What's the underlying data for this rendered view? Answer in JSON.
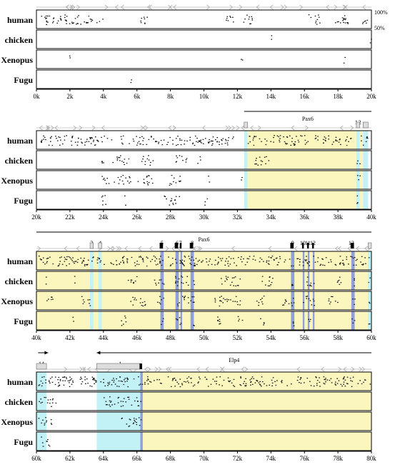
{
  "species": [
    "human",
    "chicken",
    "Xenopus",
    "Fugu"
  ],
  "scale_labels": {
    "top": "100%",
    "bottom": "50%"
  },
  "colors": {
    "exon_shading": "#8f9fd8",
    "utr_shading": "#c2f1f6",
    "intron_shading": "#fbf6be",
    "exon_box": "#000000",
    "utr_box": "#dddddd",
    "repeat_arrow": "#b0b0b0"
  },
  "panels": [
    {
      "start_kb": 0,
      "end_kb": 20,
      "ticks": [
        "0k",
        "2k",
        "4k",
        "6k",
        "8k",
        "10k",
        "12k",
        "14k",
        "16k",
        "18k",
        "20k"
      ],
      "genes": [],
      "exon_labels": [],
      "regions": [],
      "tracks": [
        {
          "species": "human",
          "segments": [
            [
              0.2,
              4.0
            ],
            [
              6.0,
              6.6
            ],
            [
              11.2,
              11.8
            ],
            [
              12.2,
              12.9
            ],
            [
              16.2,
              16.9
            ],
            [
              17.6,
              18.8
            ],
            [
              19.4,
              19.8
            ]
          ]
        },
        {
          "species": "chicken",
          "segments": [
            [
              14.0,
              14.1
            ],
            [
              19.9,
              20.0
            ]
          ]
        },
        {
          "species": "Xenopus",
          "segments": [
            [
              1.9,
              2.0
            ],
            [
              12.2,
              12.3
            ],
            [
              18.3,
              18.4
            ]
          ]
        },
        {
          "species": "Fugu",
          "segments": [
            [
              5.6,
              5.7
            ]
          ]
        }
      ]
    },
    {
      "start_kb": 20,
      "end_kb": 40,
      "ticks": [
        "20k",
        "22k",
        "24k",
        "26k",
        "28k",
        "30k",
        "32k",
        "34k",
        "36k",
        "38k",
        "40k"
      ],
      "genes": [
        {
          "name": "Pax6",
          "start": 32.4,
          "end": 40.0,
          "direction": "none"
        }
      ],
      "exon_labels": [
        {
          "text": "1",
          "pos": 39.1
        },
        {
          "text": "2",
          "pos": 39.3
        }
      ],
      "regions": [
        {
          "type": "utr",
          "start": 32.4,
          "end": 32.6
        },
        {
          "type": "intron",
          "start": 32.6,
          "end": 39.1
        },
        {
          "type": "utr",
          "start": 39.1,
          "end": 39.3
        },
        {
          "type": "intron",
          "start": 39.3,
          "end": 39.5
        },
        {
          "type": "utr",
          "start": 39.5,
          "end": 39.8
        }
      ],
      "tracks": [
        {
          "species": "human",
          "segments": [
            [
              20.2,
              24.6
            ],
            [
              25.0,
              31.8
            ],
            [
              32.6,
              36.2
            ],
            [
              36.6,
              38.8
            ],
            [
              39.2,
              39.8
            ]
          ]
        },
        {
          "species": "chicken",
          "segments": [
            [
              23.8,
              24.1
            ],
            [
              24.5,
              25.5
            ],
            [
              26.2,
              27.0
            ],
            [
              28.3,
              29.0
            ],
            [
              29.6,
              29.8
            ],
            [
              33.0,
              34.0
            ],
            [
              39.1,
              39.3
            ]
          ]
        },
        {
          "species": "Xenopus",
          "segments": [
            [
              23.8,
              24.3
            ],
            [
              24.6,
              25.6
            ],
            [
              26.0,
              27.0
            ],
            [
              27.8,
              28.6
            ],
            [
              30.2,
              30.3
            ],
            [
              32.2,
              32.3
            ],
            [
              39.1,
              39.3
            ]
          ]
        },
        {
          "species": "Fugu",
          "segments": [
            [
              23.8,
              24.2
            ],
            [
              25.2,
              25.3
            ],
            [
              27.6,
              28.6
            ],
            [
              30.0,
              30.2
            ],
            [
              39.1,
              39.3
            ]
          ]
        }
      ]
    },
    {
      "start_kb": 40,
      "end_kb": 60,
      "ticks": [
        "40k",
        "42k",
        "44k",
        "46k",
        "48k",
        "50k",
        "52k",
        "54k",
        "56k",
        "58k",
        "60k"
      ],
      "genes": [
        {
          "name": "Pax6",
          "start": 40.0,
          "end": 60.0,
          "direction": "none"
        }
      ],
      "exon_labels": [
        {
          "text": "3",
          "pos": 43.3
        },
        {
          "text": "4",
          "pos": 43.8
        },
        {
          "text": "5",
          "pos": 47.5
        },
        {
          "text": "6",
          "pos": 48.4
        },
        {
          "text": "7",
          "pos": 48.6
        },
        {
          "text": "8",
          "pos": 49.3
        },
        {
          "text": "9",
          "pos": 55.3
        },
        {
          "text": "10",
          "pos": 55.9
        },
        {
          "text": "11",
          "pos": 56.2
        },
        {
          "text": "12",
          "pos": 56.5
        },
        {
          "text": "13",
          "pos": 58.8
        }
      ],
      "regions": [
        {
          "type": "intron",
          "start": 40.0,
          "end": 60.0
        },
        {
          "type": "utr",
          "start": 43.2,
          "end": 43.4
        },
        {
          "type": "utr",
          "start": 43.7,
          "end": 43.9
        },
        {
          "type": "exon",
          "start": 47.4,
          "end": 47.6
        },
        {
          "type": "exon",
          "start": 48.3,
          "end": 48.5
        },
        {
          "type": "exon",
          "start": 48.6,
          "end": 48.7
        },
        {
          "type": "exon",
          "start": 49.2,
          "end": 49.4
        },
        {
          "type": "exon",
          "start": 55.2,
          "end": 55.4
        },
        {
          "type": "exon",
          "start": 55.9,
          "end": 56.0
        },
        {
          "type": "exon",
          "start": 56.2,
          "end": 56.3
        },
        {
          "type": "exon",
          "start": 56.5,
          "end": 56.6
        },
        {
          "type": "exon",
          "start": 58.8,
          "end": 59.0
        },
        {
          "type": "utr",
          "start": 59.8,
          "end": 60.0
        }
      ],
      "tracks": [
        {
          "species": "human",
          "segments": [
            [
              40.1,
              59.9
            ]
          ]
        },
        {
          "species": "chicken",
          "segments": [
            [
              40.5,
              40.6
            ],
            [
              42.2,
              42.3
            ],
            [
              45.4,
              46.0
            ],
            [
              47.0,
              47.6
            ],
            [
              48.2,
              49.4
            ],
            [
              51.0,
              52.2
            ],
            [
              53.4,
              54.2
            ],
            [
              55.2,
              55.4
            ],
            [
              56.0,
              56.6
            ],
            [
              57.8,
              58.2
            ],
            [
              58.8,
              59.0
            ],
            [
              59.8,
              59.9
            ]
          ]
        },
        {
          "species": "Xenopus",
          "segments": [
            [
              40.6,
              41.0
            ],
            [
              42.6,
              43.2
            ],
            [
              45.6,
              46.6
            ],
            [
              47.2,
              47.6
            ],
            [
              48.3,
              49.4
            ],
            [
              50.6,
              52.2
            ],
            [
              53.0,
              53.6
            ],
            [
              54.6,
              55.4
            ],
            [
              55.9,
              56.6
            ],
            [
              57.4,
              58.0
            ],
            [
              58.8,
              59.0
            ],
            [
              59.8,
              59.9
            ]
          ]
        },
        {
          "species": "Fugu",
          "segments": [
            [
              42.1,
              42.2
            ],
            [
              45.0,
              45.4
            ],
            [
              47.4,
              47.6
            ],
            [
              48.3,
              48.7
            ],
            [
              49.3,
              49.4
            ],
            [
              50.5,
              51.0
            ],
            [
              52.0,
              52.3
            ],
            [
              53.3,
              53.6
            ],
            [
              55.2,
              55.4
            ],
            [
              56.2,
              56.4
            ],
            [
              58.8,
              59.0
            ],
            [
              59.8,
              59.9
            ]
          ]
        }
      ]
    },
    {
      "start_kb": 60,
      "end_kb": 80,
      "ticks": [
        "60k",
        "62k",
        "64k",
        "66k",
        "68k",
        "70k",
        "72k",
        "74k",
        "76k",
        "78k",
        "80k"
      ],
      "genes": [
        {
          "name": "",
          "start": 60.1,
          "end": 60.7,
          "direction": "right"
        },
        {
          "name": "Elp4",
          "start": 63.6,
          "end": 80.0,
          "direction": "left"
        }
      ],
      "exon_labels": [
        {
          "text": "14",
          "pos": 60.3
        },
        {
          "text": "1",
          "pos": 65.0
        }
      ],
      "regions": [
        {
          "type": "utr",
          "start": 60.0,
          "end": 60.6
        },
        {
          "type": "utr",
          "start": 63.6,
          "end": 66.2
        },
        {
          "type": "exon",
          "start": 66.2,
          "end": 66.35
        },
        {
          "type": "intron",
          "start": 66.35,
          "end": 80.0
        }
      ],
      "tracks": [
        {
          "species": "human",
          "segments": [
            [
              60.1,
              79.9
            ]
          ]
        },
        {
          "species": "chicken",
          "segments": [
            [
              60.1,
              61.2
            ],
            [
              64.0,
              66.3
            ]
          ]
        },
        {
          "species": "Xenopus",
          "segments": [
            [
              60.1,
              60.9
            ],
            [
              65.0,
              66.3
            ]
          ]
        },
        {
          "species": "Fugu",
          "segments": [
            [
              60.2,
              60.8
            ]
          ]
        }
      ]
    }
  ]
}
